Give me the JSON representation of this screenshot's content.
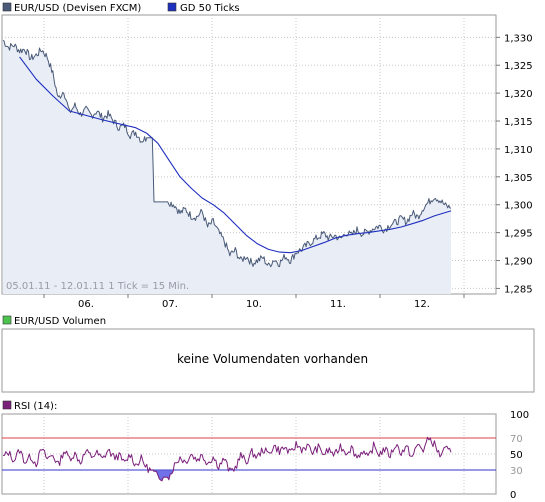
{
  "main_panel": {
    "legend": [
      {
        "label": "EUR/USD (Devisen FXCM)",
        "color": "#4a5a78"
      },
      {
        "label": "GD 50 Ticks",
        "color": "#1f2fbe"
      }
    ],
    "footnote": "05.01.11 - 12.01.11   1 Tick = 15 Min."
  },
  "volume_panel": {
    "legend_label": "EUR/USD Volumen",
    "legend_color": "#4ec24e",
    "message": "keine Volumendaten vorhanden"
  },
  "rsi_panel": {
    "legend_label": "RSI (14):",
    "legend_color": "#7a1f7a"
  },
  "chart_data": [
    {
      "type": "line",
      "series": [
        {
          "name": "EUR/USD (Devisen FXCM)",
          "color": "#4a5a78"
        },
        {
          "name": "GD 50 Ticks",
          "color": "#1f2fbe"
        }
      ],
      "x_ticks": [
        "06.",
        "07.",
        "10.",
        "11.",
        "12."
      ],
      "y_ticks": [
        "1,330",
        "1,325",
        "1,320",
        "1,315",
        "1,310",
        "1,305",
        "1,300",
        "1,295",
        "1,290",
        "1,285"
      ],
      "ylim": [
        1.284,
        1.334
      ],
      "grid": true,
      "price": [
        [
          0,
          1.3295
        ],
        [
          1,
          1.3282
        ],
        [
          2,
          1.3286
        ],
        [
          3,
          1.3276
        ],
        [
          4,
          1.3279
        ],
        [
          5,
          1.3262
        ],
        [
          6,
          1.3268
        ],
        [
          7,
          1.3278
        ],
        [
          8,
          1.3265
        ],
        [
          9,
          1.3235
        ],
        [
          10,
          1.319
        ],
        [
          11,
          1.3205
        ],
        [
          12,
          1.3165
        ],
        [
          13,
          1.3178
        ],
        [
          14,
          1.3162
        ],
        [
          15,
          1.317
        ],
        [
          16,
          1.316
        ],
        [
          17,
          1.3168
        ],
        [
          18,
          1.3155
        ],
        [
          19,
          1.3162
        ],
        [
          20,
          1.315
        ],
        [
          21,
          1.3138
        ],
        [
          22,
          1.3142
        ],
        [
          23,
          1.3125
        ],
        [
          24,
          1.313
        ],
        [
          25,
          1.3115
        ],
        [
          26,
          1.312
        ],
        [
          27,
          1.312
        ],
        [
          27.3,
          1.3005
        ],
        [
          30,
          1.3005
        ],
        [
          31,
          1.3
        ],
        [
          32,
          1.2985
        ],
        [
          33,
          1.2992
        ],
        [
          34,
          1.298
        ],
        [
          35,
          1.2978
        ],
        [
          36,
          1.2988
        ],
        [
          37,
          1.296
        ],
        [
          38,
          1.297
        ],
        [
          39,
          1.295
        ],
        [
          40,
          1.2935
        ],
        [
          41,
          1.291
        ],
        [
          42,
          1.2918
        ],
        [
          43,
          1.29
        ],
        [
          44,
          1.2908
        ],
        [
          45,
          1.2895
        ],
        [
          46,
          1.29
        ],
        [
          47,
          1.2905
        ],
        [
          48,
          1.289
        ],
        [
          49,
          1.2902
        ],
        [
          50,
          1.2895
        ],
        [
          51,
          1.2908
        ],
        [
          52,
          1.29
        ],
        [
          53,
          1.2915
        ],
        [
          54,
          1.292
        ],
        [
          55,
          1.2928
        ],
        [
          56,
          1.2935
        ],
        [
          57,
          1.2942
        ],
        [
          58,
          1.2948
        ],
        [
          59,
          1.294
        ],
        [
          60,
          1.2945
        ],
        [
          61,
          1.2938
        ],
        [
          62,
          1.295
        ],
        [
          63,
          1.2945
        ],
        [
          64,
          1.2955
        ],
        [
          65,
          1.2948
        ],
        [
          66,
          1.2952
        ],
        [
          67,
          1.2958
        ],
        [
          68,
          1.2962
        ],
        [
          69,
          1.2955
        ],
        [
          70,
          1.2965
        ],
        [
          71,
          1.2968
        ],
        [
          72,
          1.2975
        ],
        [
          73,
          1.297
        ],
        [
          74,
          1.2985
        ],
        [
          75,
          1.2978
        ],
        [
          76,
          1.2995
        ],
        [
          77,
          1.3005
        ],
        [
          78,
          1.3015
        ],
        [
          79,
          1.3008
        ],
        [
          80,
          1.2998
        ],
        [
          81,
          1.2994
        ]
      ],
      "gd50": [
        [
          3,
          1.3265
        ],
        [
          6,
          1.3225
        ],
        [
          9,
          1.3195
        ],
        [
          12,
          1.3168
        ],
        [
          15,
          1.316
        ],
        [
          18,
          1.3152
        ],
        [
          21,
          1.3145
        ],
        [
          24,
          1.3138
        ],
        [
          26,
          1.3128
        ],
        [
          28,
          1.311
        ],
        [
          30,
          1.308
        ],
        [
          32,
          1.305
        ],
        [
          34,
          1.303
        ],
        [
          36,
          1.3012
        ],
        [
          38,
          1.3
        ],
        [
          40,
          1.2985
        ],
        [
          42,
          1.2965
        ],
        [
          44,
          1.2945
        ],
        [
          46,
          1.293
        ],
        [
          48,
          1.292
        ],
        [
          50,
          1.2915
        ],
        [
          52,
          1.2914
        ],
        [
          54,
          1.2918
        ],
        [
          56,
          1.2925
        ],
        [
          58,
          1.2932
        ],
        [
          60,
          1.294
        ],
        [
          62,
          1.2945
        ],
        [
          64,
          1.2948
        ],
        [
          66,
          1.295
        ],
        [
          68,
          1.2953
        ],
        [
          70,
          1.2956
        ],
        [
          72,
          1.296
        ],
        [
          74,
          1.2966
        ],
        [
          76,
          1.2972
        ],
        [
          78,
          1.298
        ],
        [
          80,
          1.2986
        ],
        [
          81,
          1.2989
        ]
      ]
    },
    {
      "type": "line",
      "series": [
        {
          "name": "RSI (14):",
          "color": "#7a1f7a"
        }
      ],
      "y_ticks": [
        "100",
        "70",
        "50",
        "30",
        "0"
      ],
      "ylim": [
        0,
        100
      ],
      "reference_levels": [
        {
          "value": 70,
          "color": "#e04040"
        },
        {
          "value": 30,
          "color": "#3030d0"
        }
      ],
      "grid": true,
      "rsi": [
        [
          0,
          46
        ],
        [
          1,
          52
        ],
        [
          2,
          42
        ],
        [
          3,
          55
        ],
        [
          4,
          40
        ],
        [
          5,
          47
        ],
        [
          6,
          38
        ],
        [
          7,
          56
        ],
        [
          8,
          44
        ],
        [
          9,
          49
        ],
        [
          10,
          36
        ],
        [
          11,
          54
        ],
        [
          12,
          45
        ],
        [
          13,
          50
        ],
        [
          14,
          40
        ],
        [
          15,
          53
        ],
        [
          16,
          47
        ],
        [
          17,
          51
        ],
        [
          18,
          43
        ],
        [
          19,
          55
        ],
        [
          20,
          46
        ],
        [
          21,
          48
        ],
        [
          22,
          38
        ],
        [
          23,
          50
        ],
        [
          24,
          36
        ],
        [
          25,
          44
        ],
        [
          26,
          33
        ],
        [
          27,
          28
        ],
        [
          28,
          22
        ],
        [
          29,
          21
        ],
        [
          30,
          21
        ],
        [
          31,
          36
        ],
        [
          32,
          46
        ],
        [
          33,
          40
        ],
        [
          34,
          50
        ],
        [
          35,
          43
        ],
        [
          36,
          48
        ],
        [
          37,
          39
        ],
        [
          38,
          46
        ],
        [
          39,
          35
        ],
        [
          40,
          44
        ],
        [
          41,
          28
        ],
        [
          42,
          33
        ],
        [
          43,
          48
        ],
        [
          44,
          40
        ],
        [
          45,
          52
        ],
        [
          46,
          46
        ],
        [
          47,
          56
        ],
        [
          48,
          50
        ],
        [
          49,
          60
        ],
        [
          50,
          54
        ],
        [
          51,
          58
        ],
        [
          52,
          50
        ],
        [
          53,
          62
        ],
        [
          54,
          56
        ],
        [
          55,
          60
        ],
        [
          56,
          52
        ],
        [
          57,
          58
        ],
        [
          58,
          50
        ],
        [
          59,
          55
        ],
        [
          60,
          48
        ],
        [
          61,
          60
        ],
        [
          62,
          52
        ],
        [
          63,
          58
        ],
        [
          64,
          46
        ],
        [
          65,
          54
        ],
        [
          66,
          44
        ],
        [
          67,
          60
        ],
        [
          68,
          50
        ],
        [
          69,
          56
        ],
        [
          70,
          48
        ],
        [
          71,
          62
        ],
        [
          72,
          52
        ],
        [
          73,
          58
        ],
        [
          74,
          46
        ],
        [
          75,
          62
        ],
        [
          76,
          55
        ],
        [
          77,
          70
        ],
        [
          78,
          62
        ],
        [
          79,
          48
        ],
        [
          80,
          56
        ],
        [
          81,
          52
        ]
      ]
    }
  ]
}
